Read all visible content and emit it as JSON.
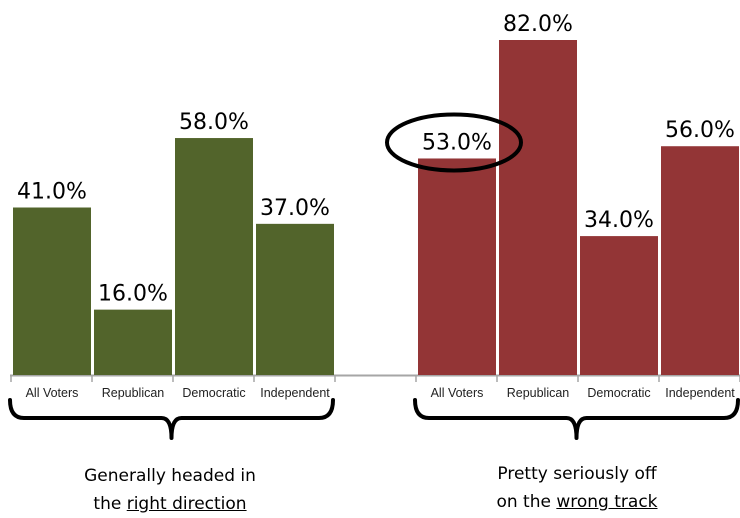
{
  "chart_data": {
    "type": "bar",
    "ylim": [
      0,
      85
    ],
    "groups": [
      {
        "name": "right_direction",
        "caption_line1": "Generally headed in",
        "caption_line2_prefix": "the ",
        "caption_line2_underlined": "right direction",
        "color": "#52642b",
        "categories": [
          "All Voters",
          "Republican",
          "Democratic",
          "Independent"
        ],
        "values": [
          41.0,
          16.0,
          58.0,
          37.0
        ],
        "value_labels": [
          "41.0%",
          "16.0%",
          "58.0%",
          "37.0%"
        ]
      },
      {
        "name": "wrong_track",
        "caption_line1": "Pretty seriously off",
        "caption_line2_prefix": "on the ",
        "caption_line2_underlined": "wrong track",
        "color": "#933536",
        "categories": [
          "All Voters",
          "Republican",
          "Democratic",
          "Independent"
        ],
        "values": [
          53.0,
          82.0,
          34.0,
          56.0
        ],
        "value_labels": [
          "53.0%",
          "82.0%",
          "34.0%",
          "56.0%"
        ]
      }
    ],
    "highlight": {
      "group": 1,
      "index": 0,
      "shape": "ellipse"
    },
    "grid": false,
    "legend": "none"
  }
}
